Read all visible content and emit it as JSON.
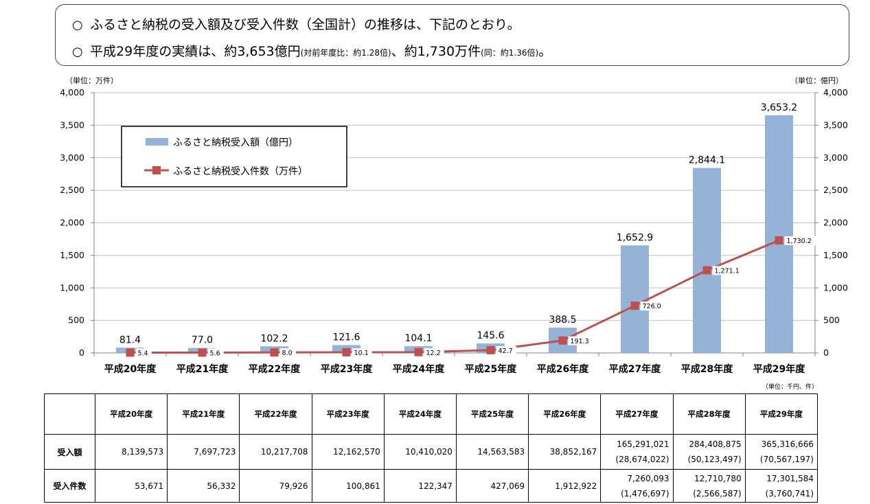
{
  "header": {
    "line1": "ふるさと納税の受入額及び受入件数（全国計）の推移は、下記のとおり。",
    "line2_main": "平成29年度の実績は、約3,653億円",
    "line2_note1": "(対前年度比：約1.28倍)",
    "line2_mid": "、約1,730万件",
    "line2_note2": "(同：約1.36倍)",
    "line2_end": "。",
    "bullet": "○"
  },
  "chart_data": {
    "type": "bar",
    "categories": [
      "平成20年度",
      "平成21年度",
      "平成22年度",
      "平成23年度",
      "平成24年度",
      "平成25年度",
      "平成26年度",
      "平成27年度",
      "平成28年度",
      "平成29年度"
    ],
    "series": [
      {
        "name": "ふるさと納税受入額（億円）",
        "type": "bar",
        "axis": "right",
        "values": [
          81.4,
          77.0,
          102.2,
          121.6,
          104.1,
          145.6,
          388.5,
          1652.9,
          2844.1,
          3653.2
        ],
        "labels": [
          "81.4",
          "77.0",
          "102.2",
          "121.6",
          "104.1",
          "145.6",
          "388.5",
          "1,652.9",
          "2,844.1",
          "3,653.2"
        ],
        "color": "#95b3d7"
      },
      {
        "name": "ふるさと納税受入件数（万件）",
        "type": "line",
        "axis": "left",
        "values": [
          5.4,
          5.6,
          8.0,
          10.1,
          12.2,
          42.7,
          191.3,
          726.0,
          1271.1,
          1730.2
        ],
        "labels": [
          "5.4",
          "5.6",
          "8.0",
          "10.1",
          "12.2",
          "42.7",
          "191.3",
          "726.0",
          "1,271.1",
          "1,730.2"
        ],
        "color": "#c0504d"
      }
    ],
    "left_unit": "（単位：万件）",
    "right_unit": "（単位：億円）",
    "ylim": [
      0,
      4000
    ],
    "yticks": [
      "0",
      "500",
      "1,000",
      "1,500",
      "2,000",
      "2,500",
      "3,000",
      "3,500",
      "4,000"
    ],
    "legend_position": "top-left",
    "grid": true
  },
  "table": {
    "unit": "（単位：千円、件）",
    "headers": [
      "平成20年度",
      "平成21年度",
      "平成22年度",
      "平成23年度",
      "平成24年度",
      "平成25年度",
      "平成26年度",
      "平成27年度",
      "平成28年度",
      "平成29年度"
    ],
    "rows": [
      {
        "label": "受入額",
        "values": [
          [
            "8,139,573"
          ],
          [
            "7,697,723"
          ],
          [
            "10,217,708"
          ],
          [
            "12,162,570"
          ],
          [
            "10,410,020"
          ],
          [
            "14,563,583"
          ],
          [
            "38,852,167"
          ],
          [
            "165,291,021",
            "(28,674,022)"
          ],
          [
            "284,408,875",
            "(50,123,497)"
          ],
          [
            "365,316,666",
            "(70,567,197)"
          ]
        ]
      },
      {
        "label": "受入件数",
        "values": [
          [
            "53,671"
          ],
          [
            "56,332"
          ],
          [
            "79,926"
          ],
          [
            "100,861"
          ],
          [
            "122,347"
          ],
          [
            "427,069"
          ],
          [
            "1,912,922"
          ],
          [
            "7,260,093",
            "(1,476,697)"
          ],
          [
            "12,710,780",
            "(2,566,587)"
          ],
          [
            "17,301,584",
            "(3,760,741)"
          ]
        ]
      }
    ]
  }
}
